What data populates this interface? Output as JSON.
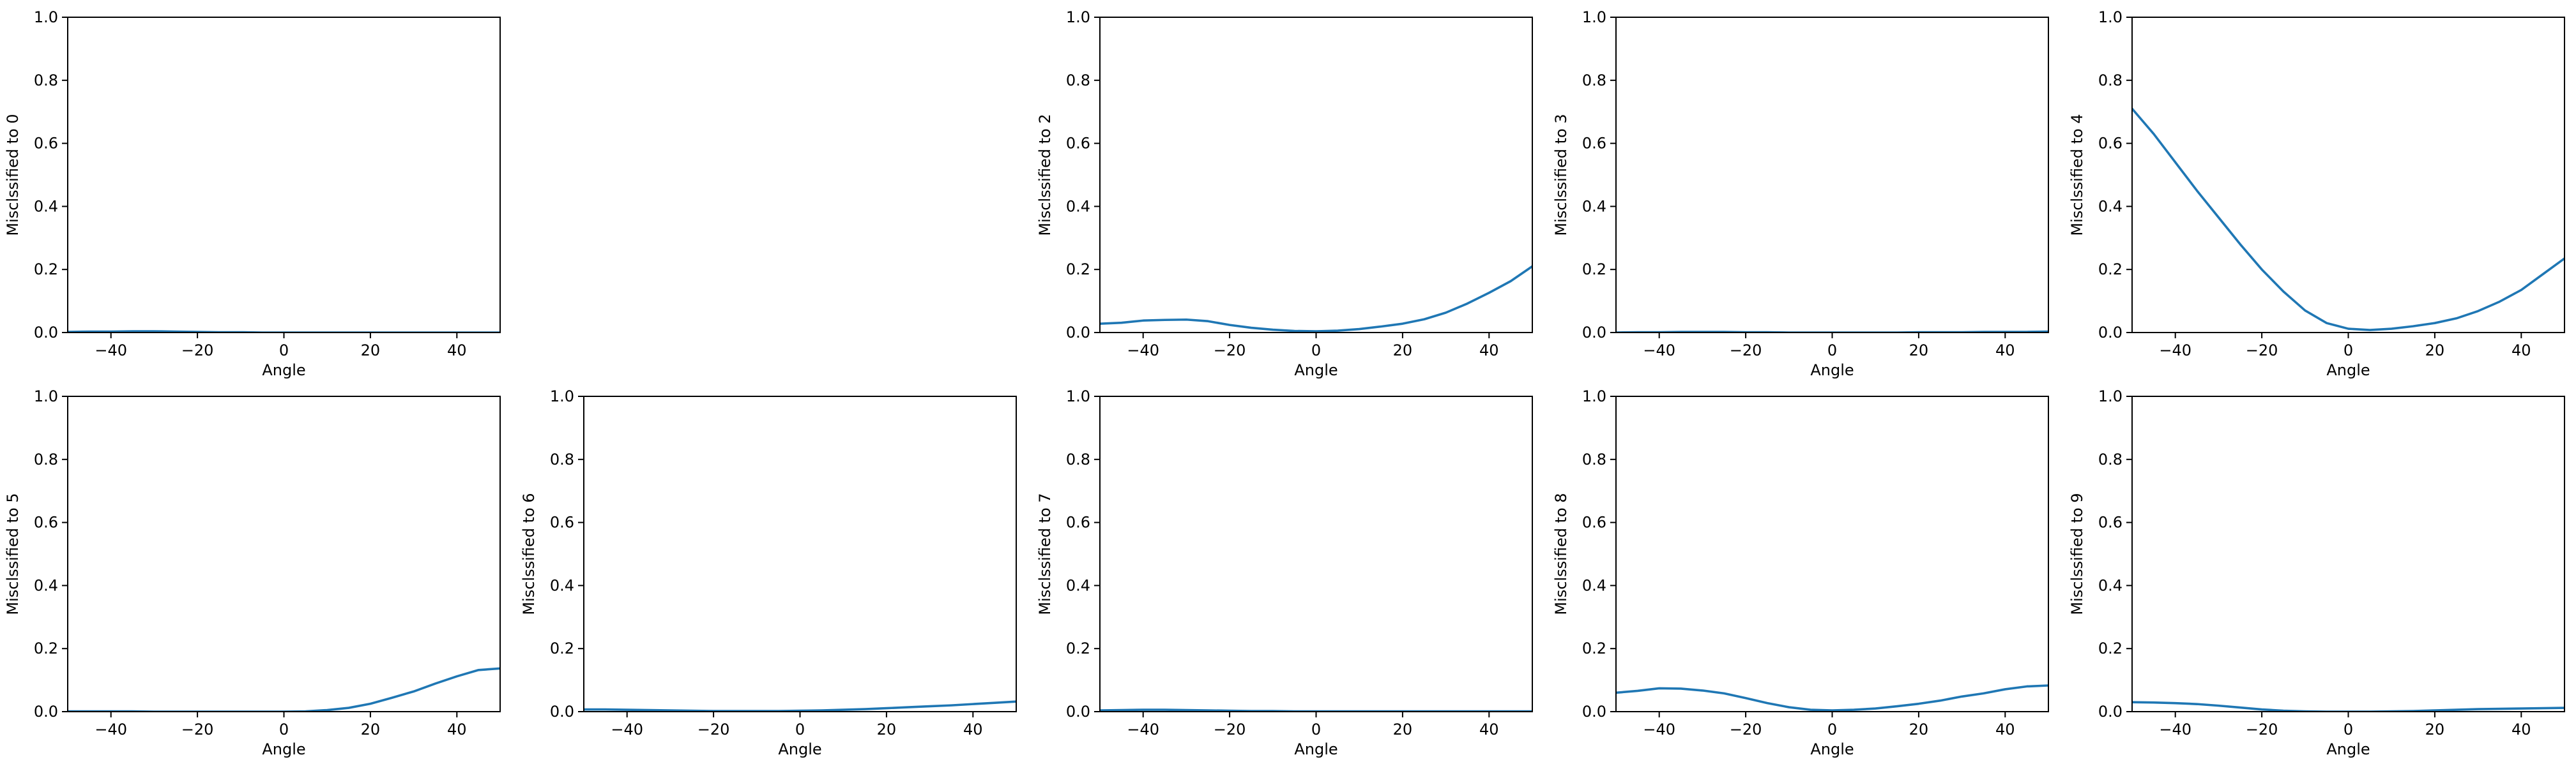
{
  "chart_data": [
    {
      "type": "line",
      "digit": 0,
      "xlabel": "Angle",
      "ylabel": "Misclssified to 0",
      "xlim": [
        -50,
        50
      ],
      "ylim": [
        0,
        1
      ],
      "xticks": [
        -40,
        -20,
        0,
        20,
        40
      ],
      "yticks": [
        0.0,
        0.2,
        0.4,
        0.6,
        0.8,
        1.0
      ],
      "x": [
        -50,
        -45,
        -40,
        -35,
        -30,
        -25,
        -20,
        -15,
        -10,
        -5,
        0,
        5,
        10,
        15,
        20,
        25,
        30,
        35,
        40,
        45,
        50
      ],
      "y": [
        0.002,
        0.003,
        0.003,
        0.004,
        0.004,
        0.003,
        0.002,
        0.001,
        0.001,
        0.0,
        0.0,
        0.0,
        0.0,
        0.0,
        0.0,
        0.0,
        0.0,
        0.0,
        0.0,
        0.0,
        0.0
      ]
    },
    {
      "type": "line",
      "digit": 2,
      "xlabel": "Angle",
      "ylabel": "Misclssified to 2",
      "xlim": [
        -50,
        50
      ],
      "ylim": [
        0,
        1
      ],
      "xticks": [
        -40,
        -20,
        0,
        20,
        40
      ],
      "yticks": [
        0.0,
        0.2,
        0.4,
        0.6,
        0.8,
        1.0
      ],
      "x": [
        -50,
        -45,
        -40,
        -35,
        -30,
        -25,
        -20,
        -15,
        -10,
        -5,
        0,
        5,
        10,
        15,
        20,
        25,
        30,
        35,
        40,
        45,
        50
      ],
      "y": [
        0.028,
        0.031,
        0.038,
        0.04,
        0.041,
        0.036,
        0.024,
        0.015,
        0.009,
        0.005,
        0.004,
        0.006,
        0.011,
        0.019,
        0.028,
        0.042,
        0.063,
        0.092,
        0.126,
        0.163,
        0.21
      ]
    },
    {
      "type": "line",
      "digit": 3,
      "xlabel": "Angle",
      "ylabel": "Misclssified to 3",
      "xlim": [
        -50,
        50
      ],
      "ylim": [
        0,
        1
      ],
      "xticks": [
        -40,
        -20,
        0,
        20,
        40
      ],
      "yticks": [
        0.0,
        0.2,
        0.4,
        0.6,
        0.8,
        1.0
      ],
      "x": [
        -50,
        -45,
        -40,
        -35,
        -30,
        -25,
        -20,
        -15,
        -10,
        -5,
        0,
        5,
        10,
        15,
        20,
        25,
        30,
        35,
        40,
        45,
        50
      ],
      "y": [
        0.0,
        0.001,
        0.001,
        0.002,
        0.002,
        0.002,
        0.001,
        0.001,
        0.0,
        0.0,
        0.0,
        0.0,
        0.0,
        0.0,
        0.001,
        0.001,
        0.001,
        0.002,
        0.002,
        0.002,
        0.003
      ]
    },
    {
      "type": "line",
      "digit": 4,
      "xlabel": "Angle",
      "ylabel": "Misclssified to 4",
      "xlim": [
        -50,
        50
      ],
      "ylim": [
        0,
        1
      ],
      "xticks": [
        -40,
        -20,
        0,
        20,
        40
      ],
      "yticks": [
        0.0,
        0.2,
        0.4,
        0.6,
        0.8,
        1.0
      ],
      "x": [
        -50,
        -45,
        -40,
        -35,
        -30,
        -25,
        -20,
        -15,
        -10,
        -5,
        0,
        5,
        10,
        15,
        20,
        25,
        30,
        35,
        40,
        45,
        50
      ],
      "y": [
        0.71,
        0.63,
        0.54,
        0.45,
        0.365,
        0.28,
        0.2,
        0.13,
        0.07,
        0.03,
        0.012,
        0.008,
        0.012,
        0.02,
        0.03,
        0.045,
        0.068,
        0.098,
        0.135,
        0.185,
        0.235
      ]
    },
    {
      "type": "line",
      "digit": 5,
      "xlabel": "Angle",
      "ylabel": "Misclssified to 5",
      "xlim": [
        -50,
        50
      ],
      "ylim": [
        0,
        1
      ],
      "xticks": [
        -40,
        -20,
        0,
        20,
        40
      ],
      "yticks": [
        0.0,
        0.2,
        0.4,
        0.6,
        0.8,
        1.0
      ],
      "x": [
        -50,
        -45,
        -40,
        -35,
        -30,
        -25,
        -20,
        -15,
        -10,
        -5,
        0,
        5,
        10,
        15,
        20,
        25,
        30,
        35,
        40,
        45,
        50
      ],
      "y": [
        0.001,
        0.001,
        0.001,
        0.001,
        0.0,
        0.0,
        0.0,
        0.0,
        0.0,
        0.0,
        0.0,
        0.001,
        0.005,
        0.012,
        0.025,
        0.044,
        0.064,
        0.089,
        0.112,
        0.132,
        0.137
      ]
    },
    {
      "type": "line",
      "digit": 6,
      "xlabel": "Angle",
      "ylabel": "Misclssified to 6",
      "xlim": [
        -50,
        50
      ],
      "ylim": [
        0,
        1
      ],
      "xticks": [
        -40,
        -20,
        0,
        20,
        40
      ],
      "yticks": [
        0.0,
        0.2,
        0.4,
        0.6,
        0.8,
        1.0
      ],
      "x": [
        -50,
        -45,
        -40,
        -35,
        -30,
        -25,
        -20,
        -15,
        -10,
        -5,
        0,
        5,
        10,
        15,
        20,
        25,
        30,
        35,
        40,
        45,
        50
      ],
      "y": [
        0.007,
        0.007,
        0.006,
        0.005,
        0.004,
        0.003,
        0.002,
        0.002,
        0.002,
        0.002,
        0.003,
        0.004,
        0.006,
        0.008,
        0.011,
        0.014,
        0.017,
        0.02,
        0.024,
        0.028,
        0.032
      ]
    },
    {
      "type": "line",
      "digit": 7,
      "xlabel": "Angle",
      "ylabel": "Misclssified to 7",
      "xlim": [
        -50,
        50
      ],
      "ylim": [
        0,
        1
      ],
      "xticks": [
        -40,
        -20,
        0,
        20,
        40
      ],
      "yticks": [
        0.0,
        0.2,
        0.4,
        0.6,
        0.8,
        1.0
      ],
      "x": [
        -50,
        -45,
        -40,
        -35,
        -30,
        -25,
        -20,
        -15,
        -10,
        -5,
        0,
        5,
        10,
        15,
        20,
        25,
        30,
        35,
        40,
        45,
        50
      ],
      "y": [
        0.004,
        0.005,
        0.006,
        0.006,
        0.005,
        0.004,
        0.003,
        0.002,
        0.002,
        0.001,
        0.001,
        0.001,
        0.001,
        0.001,
        0.001,
        0.001,
        0.001,
        0.001,
        0.001,
        0.001,
        0.001
      ]
    },
    {
      "type": "line",
      "digit": 8,
      "xlabel": "Angle",
      "ylabel": "Misclssified to 8",
      "xlim": [
        -50,
        50
      ],
      "ylim": [
        0,
        1
      ],
      "xticks": [
        -40,
        -20,
        0,
        20,
        40
      ],
      "yticks": [
        0.0,
        0.2,
        0.4,
        0.6,
        0.8,
        1.0
      ],
      "x": [
        -50,
        -45,
        -40,
        -35,
        -30,
        -25,
        -20,
        -15,
        -10,
        -5,
        0,
        5,
        10,
        15,
        20,
        25,
        30,
        35,
        40,
        45,
        50
      ],
      "y": [
        0.06,
        0.066,
        0.074,
        0.073,
        0.067,
        0.058,
        0.043,
        0.027,
        0.014,
        0.006,
        0.004,
        0.006,
        0.01,
        0.017,
        0.025,
        0.035,
        0.048,
        0.058,
        0.071,
        0.08,
        0.083
      ]
    },
    {
      "type": "line",
      "digit": 9,
      "xlabel": "Angle",
      "ylabel": "Misclssified to 9",
      "xlim": [
        -50,
        50
      ],
      "ylim": [
        0,
        1
      ],
      "xticks": [
        -40,
        -20,
        0,
        20,
        40
      ],
      "yticks": [
        0.0,
        0.2,
        0.4,
        0.6,
        0.8,
        1.0
      ],
      "x": [
        -50,
        -45,
        -40,
        -35,
        -30,
        -25,
        -20,
        -15,
        -10,
        -5,
        0,
        5,
        10,
        15,
        20,
        25,
        30,
        35,
        40,
        45,
        50
      ],
      "y": [
        0.03,
        0.029,
        0.027,
        0.024,
        0.019,
        0.013,
        0.007,
        0.003,
        0.001,
        0.0,
        0.0,
        0.0,
        0.001,
        0.002,
        0.004,
        0.006,
        0.008,
        0.009,
        0.01,
        0.011,
        0.012
      ]
    }
  ],
  "style": {
    "line_color": "#1f77b4",
    "axis_color": "#000000",
    "background": "#ffffff"
  }
}
